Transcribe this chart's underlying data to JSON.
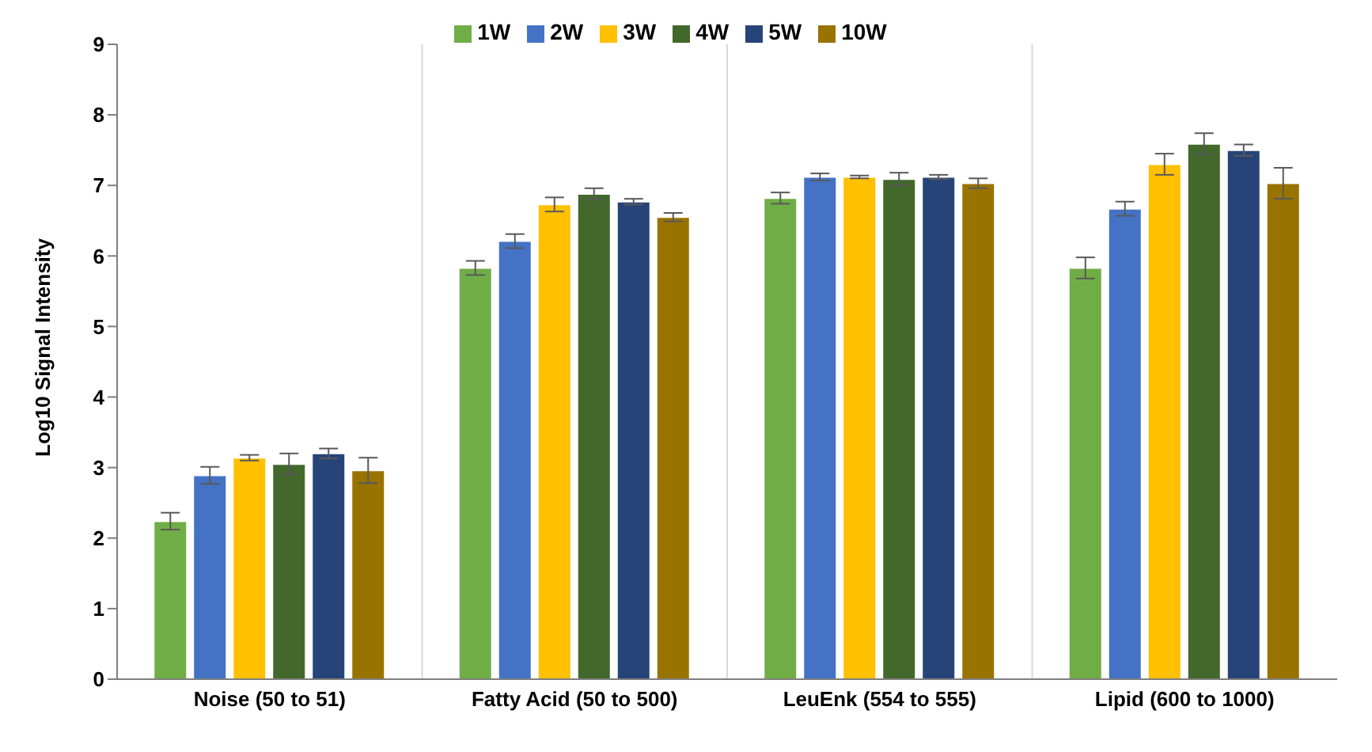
{
  "chart_data": {
    "type": "bar",
    "ylabel": "Log10 Signal Intensity",
    "categories": [
      "Noise (50 to 51)",
      "Fatty Acid (50 to 500)",
      "LeuEnk (554 to 555)",
      "Lipid (600 to 1000)"
    ],
    "series": [
      {
        "name": "1W",
        "color": "#70ad47",
        "values": [
          2.24,
          5.83,
          6.82,
          5.83
        ],
        "errors": [
          0.12,
          0.1,
          0.08,
          0.15
        ]
      },
      {
        "name": "2W",
        "color": "#4472c4",
        "values": [
          2.89,
          6.21,
          7.12,
          6.67
        ],
        "errors": [
          0.12,
          0.1,
          0.05,
          0.1
        ]
      },
      {
        "name": "3W",
        "color": "#ffc000",
        "values": [
          3.14,
          6.73,
          7.12,
          7.3
        ],
        "errors": [
          0.04,
          0.1,
          0.02,
          0.15
        ]
      },
      {
        "name": "4W",
        "color": "#43682b",
        "values": [
          3.05,
          6.88,
          7.09,
          7.59
        ],
        "errors": [
          0.15,
          0.08,
          0.09,
          0.15
        ]
      },
      {
        "name": "5W",
        "color": "#264478",
        "values": [
          3.2,
          6.77,
          7.12,
          7.5
        ],
        "errors": [
          0.07,
          0.04,
          0.03,
          0.08
        ]
      },
      {
        "name": "10W",
        "color": "#997300",
        "values": [
          2.96,
          6.55,
          7.03,
          7.03
        ],
        "errors": [
          0.18,
          0.06,
          0.07,
          0.22
        ]
      }
    ],
    "ylim": [
      0,
      9
    ],
    "yticks": [
      0,
      1,
      2,
      3,
      4,
      5,
      6,
      7,
      8,
      9
    ],
    "grid": "x",
    "legend": "top"
  }
}
